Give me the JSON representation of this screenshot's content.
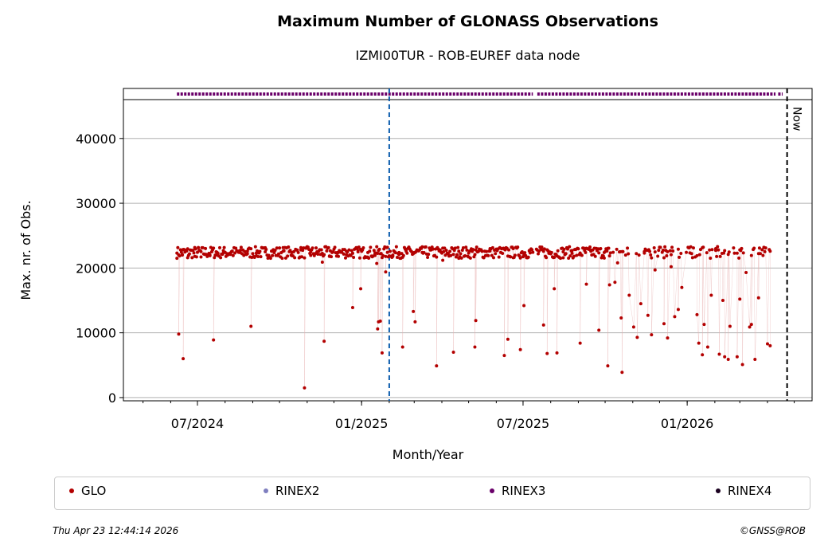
{
  "title": "Maximum Number of GLONASS Observations",
  "subtitle": "IZMI00TUR - ROB-EUREF data node",
  "footer": {
    "timestamp": "Thu Apr 23 12:44:14 2026",
    "credit": "©GNSS@ROB"
  },
  "legend": [
    {
      "label": "GLO",
      "color": "#b30000"
    },
    {
      "label": "RINEX2",
      "color": "#7f7fbf"
    },
    {
      "label": "RINEX3",
      "color": "#6a006a"
    },
    {
      "label": "RINEX4",
      "color": "#1a0020"
    }
  ],
  "chart_data": {
    "type": "scatter",
    "title": "Maximum Number of GLONASS Observations",
    "subtitle": "IZMI00TUR - ROB-EUREF data node",
    "xlabel": "Month/Year",
    "ylabel": "Max. nr. of Obs.",
    "ylim": [
      -500,
      46000
    ],
    "xlim": [
      "2024-04-09",
      "2026-05-21"
    ],
    "yticks": [
      0,
      10000,
      20000,
      30000,
      40000
    ],
    "ytick_labels": [
      "0",
      "10000",
      "20000",
      "30000",
      "40000"
    ],
    "xticks": [
      "2024-07-01",
      "2025-01-01",
      "2025-07-01",
      "2026-01-01"
    ],
    "xtick_labels": [
      "07/2024",
      "01/2025",
      "07/2025",
      "01/2026"
    ],
    "grid": "horizontal",
    "vertical_markers": [
      {
        "date": "2025-02-01",
        "style": "dashed",
        "color": "#0b5cad"
      },
      {
        "date": "2026-04-23",
        "style": "dashed",
        "color": "#000000",
        "label": "Now"
      }
    ],
    "rinex3_coverage": [
      [
        "2024-06-08",
        "2025-07-12"
      ],
      [
        "2025-07-17",
        "2026-04-10"
      ],
      [
        "2026-04-13",
        "2026-04-18"
      ]
    ],
    "series": [
      {
        "name": "GLO",
        "color": "#b30000",
        "typical_range": [
          21500,
          23300
        ],
        "points": [
          [
            "2024-06-08",
            22300
          ],
          [
            "2024-06-10",
            9800
          ],
          [
            "2024-06-14",
            22000
          ],
          [
            "2024-06-15",
            6000
          ],
          [
            "2024-06-20",
            21600
          ],
          [
            "2024-06-28",
            21800
          ],
          [
            "2024-07-05",
            21700
          ],
          [
            "2024-07-10",
            22100
          ],
          [
            "2024-07-15",
            21900
          ],
          [
            "2024-07-19",
            8900
          ],
          [
            "2024-07-22",
            22000
          ],
          [
            "2024-07-30",
            22300
          ],
          [
            "2024-08-08",
            22500
          ],
          [
            "2024-08-18",
            22400
          ],
          [
            "2024-08-26",
            22600
          ],
          [
            "2024-08-30",
            11000
          ],
          [
            "2024-09-05",
            22300
          ],
          [
            "2024-09-15",
            22500
          ],
          [
            "2024-09-25",
            22700
          ],
          [
            "2024-10-05",
            22600
          ],
          [
            "2024-10-15",
            22400
          ],
          [
            "2024-10-25",
            22800
          ],
          [
            "2024-10-29",
            1500
          ],
          [
            "2024-11-05",
            22500
          ],
          [
            "2024-11-12",
            22300
          ],
          [
            "2024-11-18",
            20900
          ],
          [
            "2024-11-20",
            8700
          ],
          [
            "2024-11-26",
            21800
          ],
          [
            "2024-12-05",
            22400
          ],
          [
            "2024-12-15",
            22600
          ],
          [
            "2024-12-22",
            13900
          ],
          [
            "2024-12-28",
            22500
          ],
          [
            "2024-12-31",
            16800
          ],
          [
            "2025-01-08",
            22400
          ],
          [
            "2025-01-16",
            22300
          ],
          [
            "2025-01-18",
            20700
          ],
          [
            "2025-01-19",
            10600
          ],
          [
            "2025-01-20",
            11700
          ],
          [
            "2025-01-22",
            11800
          ],
          [
            "2025-01-24",
            6900
          ],
          [
            "2025-01-28",
            19400
          ],
          [
            "2025-01-30",
            23200
          ],
          [
            "2025-02-05",
            21800
          ],
          [
            "2025-02-12",
            22400
          ],
          [
            "2025-02-16",
            7800
          ],
          [
            "2025-02-20",
            22600
          ],
          [
            "2025-02-28",
            13300
          ],
          [
            "2025-03-02",
            11700
          ],
          [
            "2025-03-10",
            22400
          ],
          [
            "2025-03-20",
            22800
          ],
          [
            "2025-03-26",
            4900
          ],
          [
            "2025-04-02",
            21200
          ],
          [
            "2025-04-08",
            22200
          ],
          [
            "2025-04-14",
            7000
          ],
          [
            "2025-04-20",
            22600
          ],
          [
            "2025-05-01",
            22300
          ],
          [
            "2025-05-08",
            7800
          ],
          [
            "2025-05-09",
            11900
          ],
          [
            "2025-05-15",
            22800
          ],
          [
            "2025-05-25",
            23000
          ],
          [
            "2025-06-05",
            23100
          ],
          [
            "2025-06-10",
            6500
          ],
          [
            "2025-06-14",
            9000
          ],
          [
            "2025-06-20",
            23000
          ],
          [
            "2025-06-28",
            7400
          ],
          [
            "2025-07-02",
            14200
          ],
          [
            "2025-07-08",
            22700
          ],
          [
            "2025-07-16",
            22900
          ],
          [
            "2025-07-24",
            11200
          ],
          [
            "2025-07-28",
            6800
          ],
          [
            "2025-08-01",
            22400
          ],
          [
            "2025-08-05",
            16800
          ],
          [
            "2025-08-08",
            6900
          ],
          [
            "2025-08-15",
            22500
          ],
          [
            "2025-08-25",
            22700
          ],
          [
            "2025-09-03",
            8400
          ],
          [
            "2025-09-10",
            17500
          ],
          [
            "2025-09-15",
            22600
          ],
          [
            "2025-09-24",
            10400
          ],
          [
            "2025-09-30",
            22400
          ],
          [
            "2025-10-04",
            4900
          ],
          [
            "2025-10-06",
            17400
          ],
          [
            "2025-10-12",
            17800
          ],
          [
            "2025-10-15",
            20800
          ],
          [
            "2025-10-19",
            12300
          ],
          [
            "2025-10-20",
            3900
          ],
          [
            "2025-10-24",
            22000
          ],
          [
            "2025-10-28",
            15800
          ],
          [
            "2025-11-02",
            10900
          ],
          [
            "2025-11-06",
            9300
          ],
          [
            "2025-11-10",
            14500
          ],
          [
            "2025-11-14",
            22300
          ],
          [
            "2025-11-18",
            12700
          ],
          [
            "2025-11-22",
            9700
          ],
          [
            "2025-11-26",
            19700
          ],
          [
            "2025-12-02",
            23200
          ],
          [
            "2025-12-06",
            11400
          ],
          [
            "2025-12-10",
            9200
          ],
          [
            "2025-12-14",
            20200
          ],
          [
            "2025-12-18",
            12500
          ],
          [
            "2025-12-22",
            13600
          ],
          [
            "2025-12-26",
            17000
          ],
          [
            "2026-01-02",
            23200
          ],
          [
            "2026-01-08",
            23100
          ],
          [
            "2026-01-12",
            12800
          ],
          [
            "2026-01-14",
            8400
          ],
          [
            "2026-01-18",
            6600
          ],
          [
            "2026-01-20",
            11300
          ],
          [
            "2026-01-24",
            7800
          ],
          [
            "2026-01-28",
            15800
          ],
          [
            "2026-02-02",
            23000
          ],
          [
            "2026-02-06",
            6700
          ],
          [
            "2026-02-10",
            15000
          ],
          [
            "2026-02-12",
            6300
          ],
          [
            "2026-02-16",
            5900
          ],
          [
            "2026-02-18",
            11000
          ],
          [
            "2026-02-22",
            23100
          ],
          [
            "2026-02-26",
            6300
          ],
          [
            "2026-03-01",
            15200
          ],
          [
            "2026-03-04",
            5100
          ],
          [
            "2026-03-08",
            19300
          ],
          [
            "2026-03-12",
            10900
          ],
          [
            "2026-03-14",
            11300
          ],
          [
            "2026-03-18",
            5900
          ],
          [
            "2026-03-22",
            15400
          ],
          [
            "2026-03-28",
            23200
          ],
          [
            "2026-04-01",
            8300
          ],
          [
            "2026-04-04",
            8000
          ]
        ]
      }
    ]
  }
}
